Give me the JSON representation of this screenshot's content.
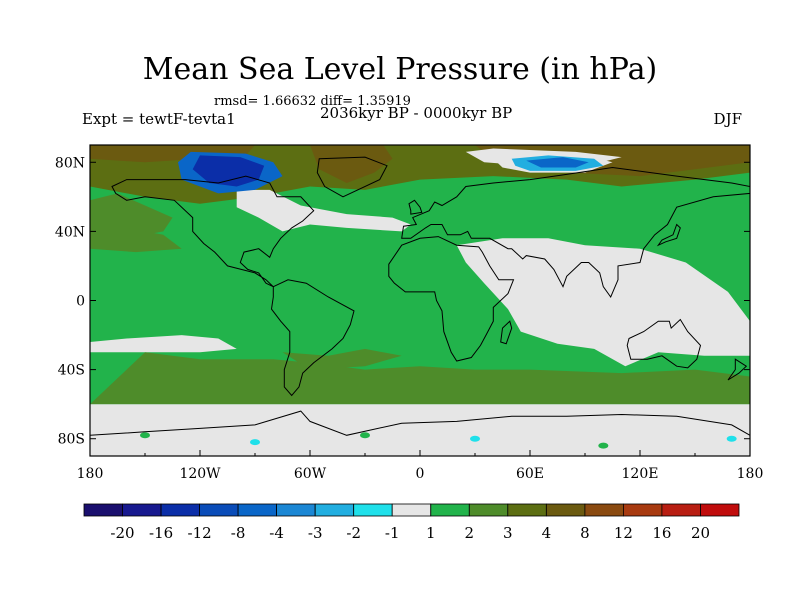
{
  "header": {
    "title": "Mean Sea Level Pressure (in hPa)",
    "stats": "rmsd= 1.66632 diff= 1.35919",
    "experiment": "Expt = tewtF-tevta1",
    "period": "2036kyr BP - 0000kyr BP",
    "season": "DJF"
  },
  "axes": {
    "lat_labels": [
      "80N",
      "40N",
      "0",
      "40S",
      "80S"
    ],
    "lon_labels": [
      "180",
      "120W",
      "60W",
      "0",
      "60E",
      "120E",
      "180"
    ]
  },
  "colorbar": {
    "labels": [
      "-20",
      "-16",
      "-12",
      "-8",
      "-4",
      "-3",
      "-2",
      "-1",
      "1",
      "2",
      "3",
      "4",
      "8",
      "12",
      "16",
      "20"
    ],
    "colors": [
      "#1a0f6e",
      "#17198f",
      "#0b2ea8",
      "#0a4cb8",
      "#0a66c8",
      "#1b87d4",
      "#22aee0",
      "#1fe0ea",
      "#e6e6e6",
      "#22b34b",
      "#4e8c2a",
      "#5c6e12",
      "#6b5a10",
      "#8a4a10",
      "#a83a10",
      "#b81e12",
      "#c00c0c"
    ]
  },
  "map_colors": {
    "background": "#22b34b",
    "light": "#e6e6e6",
    "dark_green": "#4e8c2a",
    "olive": "#5c6e12",
    "brown": "#6b5a10",
    "blue_dark": "#0b2ea8",
    "blue_mid": "#0a66c8",
    "blue_light": "#22aee0",
    "cyan": "#1fe0ea"
  }
}
